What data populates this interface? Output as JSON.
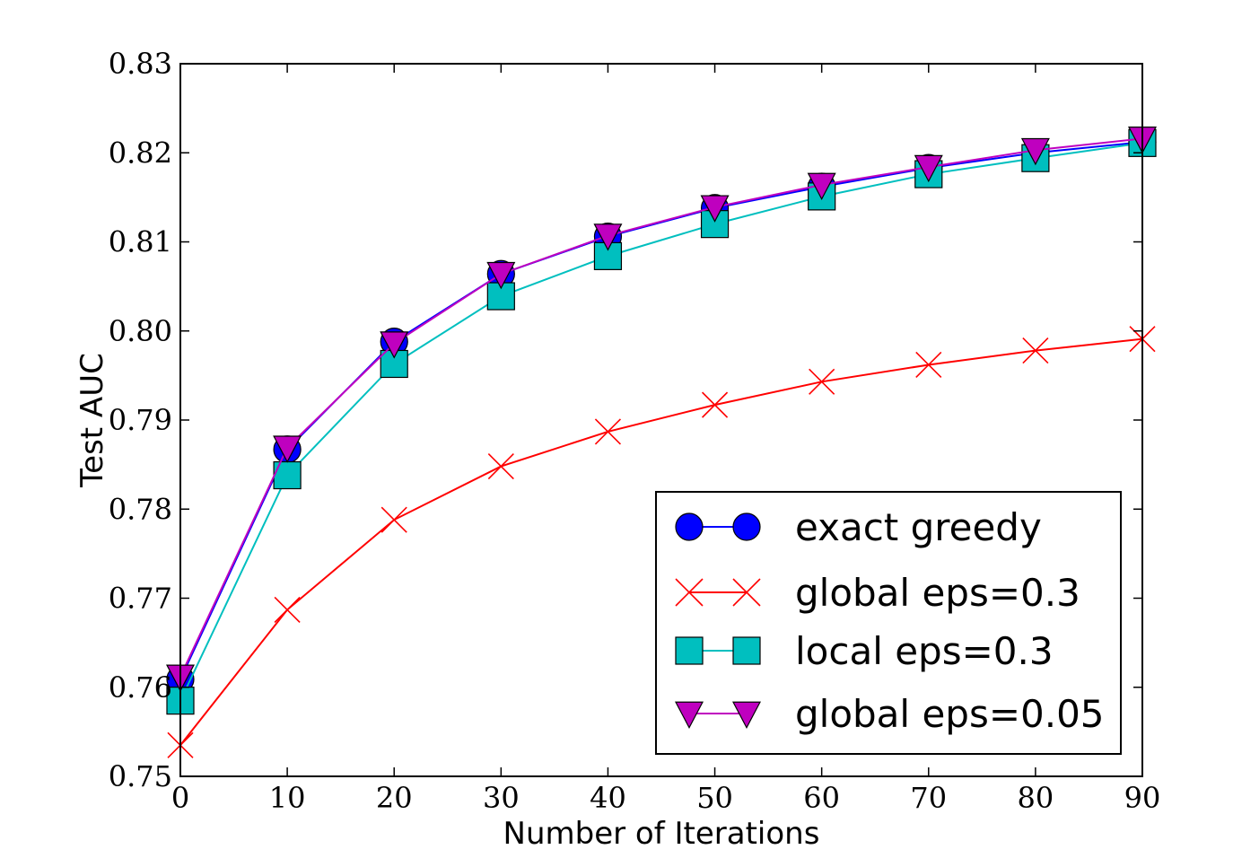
{
  "chart_data": {
    "type": "line",
    "title": "",
    "xlabel": "Number of Iterations",
    "ylabel": "Test AUC",
    "xlim": [
      0,
      90
    ],
    "ylim": [
      0.75,
      0.83
    ],
    "xticks": [
      0,
      10,
      20,
      30,
      40,
      50,
      60,
      70,
      80,
      90
    ],
    "xtick_labels": [
      "0",
      "10",
      "20",
      "30",
      "40",
      "50",
      "60",
      "70",
      "80",
      "90"
    ],
    "yticks": [
      0.75,
      0.76,
      0.77,
      0.78,
      0.79,
      0.8,
      0.81,
      0.82,
      0.83
    ],
    "ytick_labels": [
      "0.75",
      "0.76",
      "0.77",
      "0.78",
      "0.79",
      "0.80",
      "0.81",
      "0.82",
      "0.83"
    ],
    "grid": false,
    "legend_position": "lower-right",
    "x": [
      0,
      10,
      20,
      30,
      40,
      50,
      60,
      70,
      80,
      90
    ],
    "series": [
      {
        "name": "exact greedy",
        "color": "#0000ff",
        "marker": "circle",
        "marker_fill": "#0000ff",
        "values": [
          0.7609,
          0.7867,
          0.7988,
          0.8064,
          0.8106,
          0.8138,
          0.8162,
          0.8183,
          0.82,
          0.8212
        ]
      },
      {
        "name": "global eps=0.3",
        "color": "#ff0000",
        "marker": "x",
        "marker_fill": "#ff0000",
        "values": [
          0.7535,
          0.7687,
          0.7788,
          0.7848,
          0.7887,
          0.7917,
          0.7943,
          0.7962,
          0.7978,
          0.7991
        ]
      },
      {
        "name": "local eps=0.3",
        "color": "#00bfbf",
        "marker": "square",
        "marker_fill": "#00bfbf",
        "values": [
          0.7585,
          0.7838,
          0.7963,
          0.8039,
          0.8084,
          0.812,
          0.8151,
          0.8176,
          0.8194,
          0.8211
        ]
      },
      {
        "name": "global eps=0.05",
        "color": "#bf00bf",
        "marker": "triangle-down",
        "marker_fill": "#bf00bf",
        "values": [
          0.7612,
          0.7869,
          0.7986,
          0.8064,
          0.8107,
          0.8139,
          0.8164,
          0.8184,
          0.8203,
          0.8216
        ]
      }
    ]
  }
}
